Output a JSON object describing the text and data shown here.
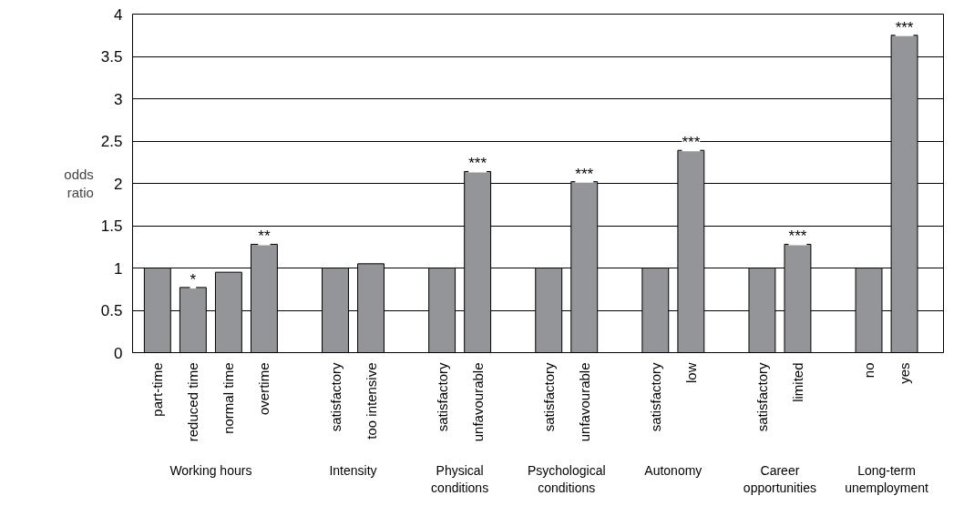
{
  "chart_data": {
    "type": "bar",
    "ylabel": "odds\nratio",
    "categories": [
      "part-time",
      "reduced time",
      "normal time",
      "overtime",
      null,
      "satisfactory",
      "too intensive",
      null,
      "satisfactory",
      "unfavourable",
      null,
      "satisfactory",
      "unfavourable",
      null,
      "satisfactory",
      "low",
      null,
      "satisfactory",
      "limited",
      null,
      "no",
      "yes"
    ],
    "values": [
      1,
      0.77,
      0.95,
      1.28,
      null,
      1,
      1.05,
      null,
      1,
      2.14,
      null,
      1,
      2.02,
      null,
      1,
      2.39,
      null,
      1,
      1.28,
      null,
      1,
      3.75
    ],
    "value_labels": [
      null,
      "*",
      null,
      "**",
      null,
      null,
      null,
      null,
      null,
      "***",
      null,
      null,
      "***",
      null,
      null,
      "***",
      null,
      null,
      "***",
      null,
      null,
      "***"
    ],
    "color": "#939598",
    "ylim": [
      0,
      4
    ],
    "yticks": [
      0,
      0.5,
      1,
      1.5,
      2,
      2.5,
      3,
      3.5,
      4
    ],
    "grid": "y",
    "annotations": [
      "Working hours",
      "Intensity",
      "Physical\nconditions",
      "Psychological\nconditions",
      "Autonomy",
      "Career\nopportunities",
      "Long-term\nunemployment"
    ]
  }
}
